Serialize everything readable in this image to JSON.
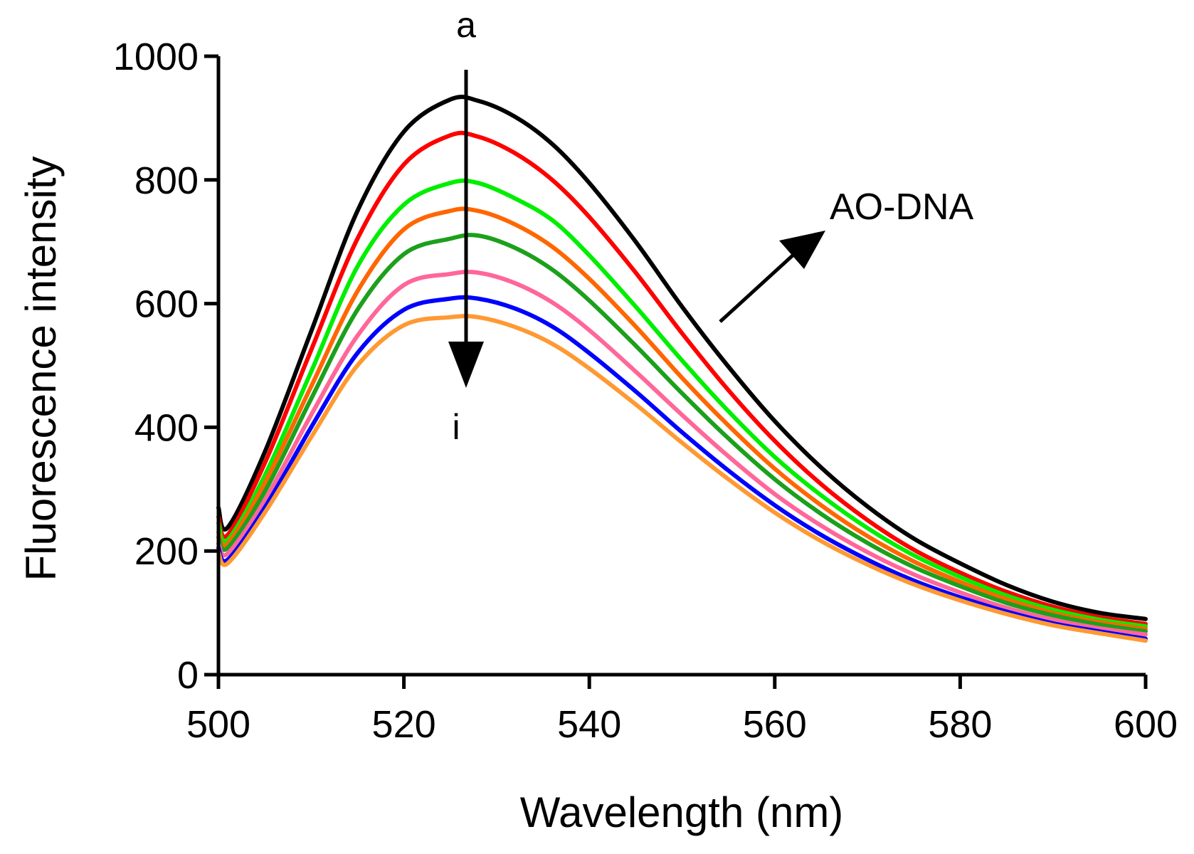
{
  "chart_data": {
    "type": "line",
    "xlabel": "Wavelength (nm)",
    "ylabel": "Fluorescence intensity",
    "xlim": [
      500,
      600
    ],
    "ylim": [
      0,
      1000
    ],
    "xticks": [
      "500",
      "520",
      "540",
      "560",
      "580",
      "600"
    ],
    "yticks": [
      "0",
      "200",
      "400",
      "600",
      "800",
      "1000"
    ],
    "grid": false,
    "annotations": {
      "start_label": "a",
      "end_label": "i",
      "curve_label": "AO-DNA"
    },
    "x": [
      500,
      501,
      505,
      510,
      515,
      520,
      525,
      528,
      532,
      536,
      540,
      545,
      550,
      555,
      560,
      565,
      570,
      575,
      580,
      585,
      590,
      595,
      600
    ],
    "series": [
      {
        "color": "#000000",
        "values": [
          270,
          238,
          360,
          555,
          750,
          878,
          930,
          928,
          902,
          858,
          795,
          700,
          595,
          498,
          410,
          335,
          272,
          220,
          180,
          145,
          118,
          100,
          90
        ]
      },
      {
        "color": "#ff0000",
        "values": [
          255,
          226,
          342,
          525,
          705,
          825,
          872,
          870,
          843,
          800,
          740,
          650,
          552,
          460,
          378,
          308,
          250,
          202,
          165,
          134,
          110,
          93,
          82
        ]
      },
      {
        "color": "#00ee00",
        "values": [
          245,
          218,
          322,
          490,
          660,
          760,
          795,
          795,
          770,
          735,
          678,
          595,
          508,
          426,
          352,
          290,
          237,
          193,
          158,
          128,
          105,
          89,
          78
        ]
      },
      {
        "color": "#ff6600",
        "values": [
          230,
          212,
          310,
          466,
          620,
          720,
          750,
          750,
          728,
          692,
          640,
          563,
          480,
          403,
          333,
          274,
          224,
          183,
          150,
          122,
          100,
          85,
          74
        ]
      },
      {
        "color": "#1ca01c",
        "values": [
          222,
          205,
          296,
          446,
          590,
          680,
          705,
          710,
          690,
          655,
          605,
          532,
          455,
          382,
          316,
          260,
          213,
          174,
          143,
          116,
          96,
          81,
          70
        ]
      },
      {
        "color": "#ff6699",
        "values": [
          212,
          196,
          282,
          420,
          548,
          630,
          648,
          650,
          633,
          602,
          557,
          490,
          420,
          353,
          292,
          241,
          198,
          162,
          133,
          108,
          89,
          75,
          65
        ]
      },
      {
        "color": "#0000ff",
        "values": [
          205,
          186,
          270,
          400,
          520,
          590,
          608,
          608,
          592,
          563,
          520,
          458,
          392,
          330,
          274,
          226,
          186,
          152,
          125,
          102,
          83,
          70,
          58
        ]
      },
      {
        "color": "#ff9933",
        "values": [
          198,
          180,
          262,
          384,
          500,
          565,
          578,
          578,
          562,
          535,
          495,
          437,
          375,
          316,
          262,
          216,
          178,
          146,
          120,
          98,
          80,
          67,
          55
        ]
      }
    ]
  }
}
